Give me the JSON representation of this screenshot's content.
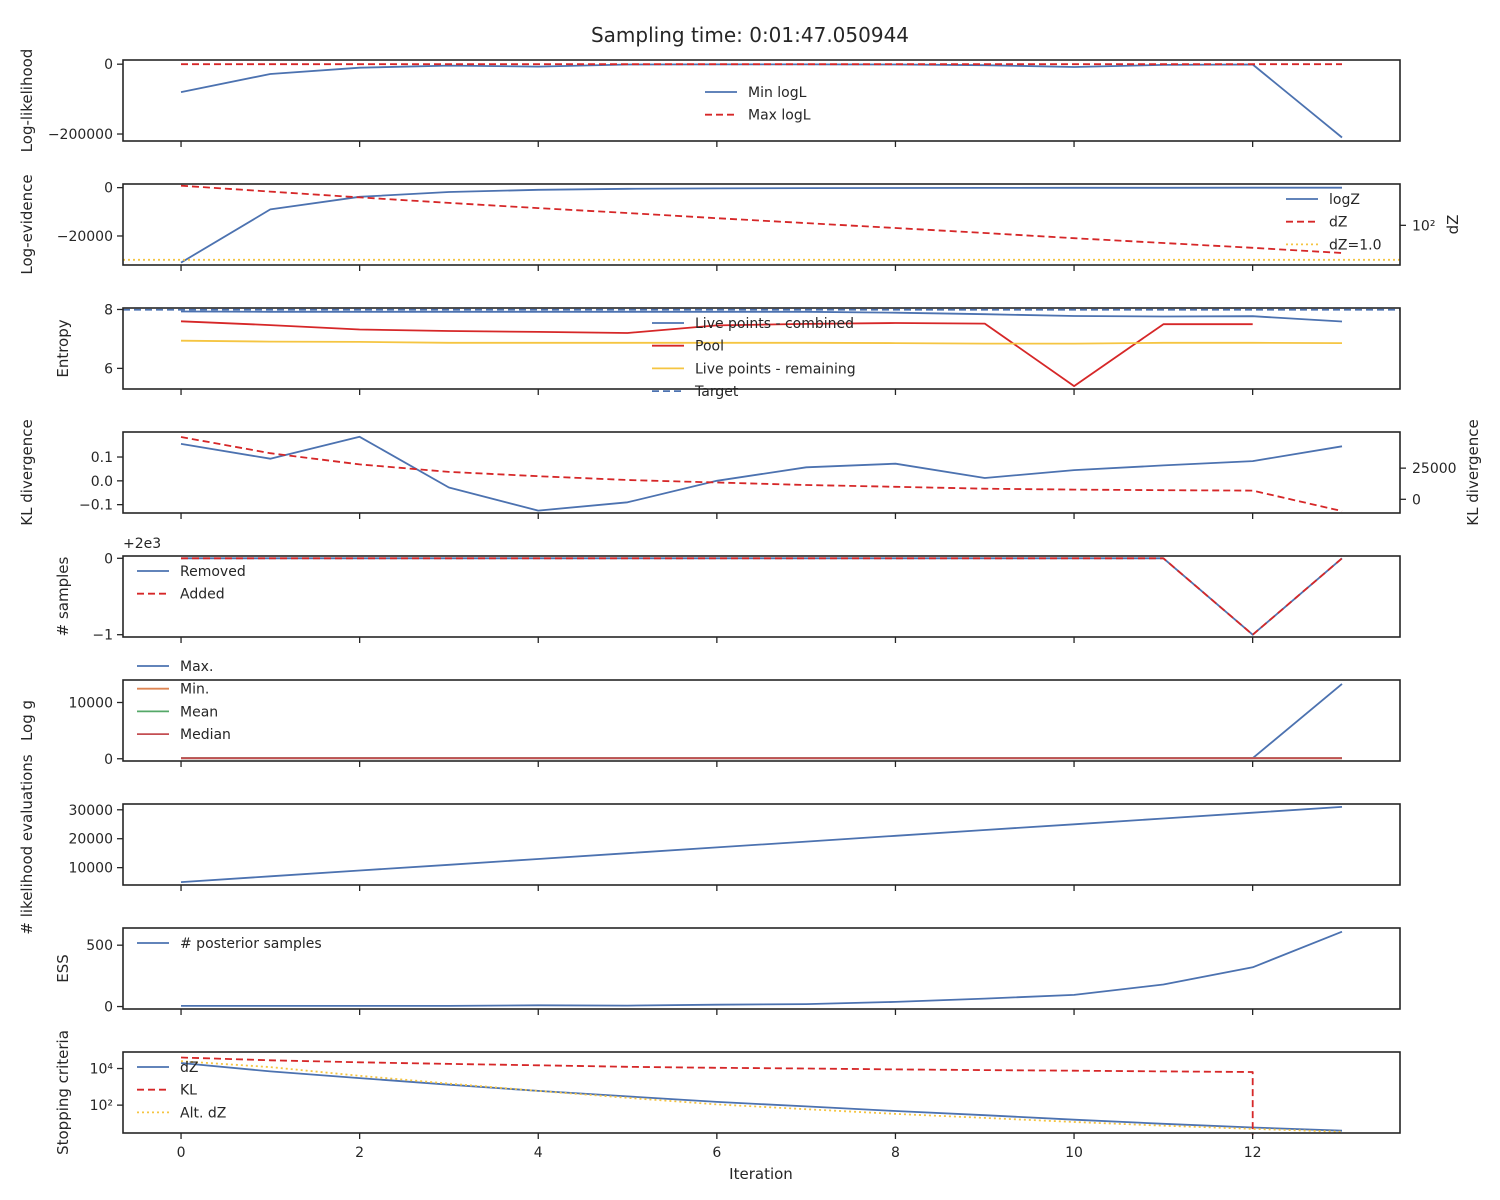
{
  "colors": {
    "blue": "#4c72b0",
    "red": "#d62728",
    "yellow": "#f5c542",
    "orange": "#dd8452",
    "green": "#55a868",
    "crimson": "#c44e52"
  },
  "chart_data": {
    "type": "line",
    "title": "Sampling time: 0:01:47.050944",
    "xlabel": "Iteration",
    "x": [
      0,
      1,
      2,
      3,
      4,
      5,
      6,
      7,
      8,
      9,
      10,
      11,
      12,
      13
    ],
    "xlim": [
      -0.65,
      13.65
    ],
    "xticks": [
      0,
      2,
      4,
      6,
      8,
      10,
      12
    ],
    "xticklabels": [
      "0",
      "2",
      "4",
      "6",
      "8",
      "10",
      "12"
    ],
    "panels": [
      {
        "ylabel": "Log-likelihood",
        "ylim": [
          -220000,
          12000
        ],
        "yticks": [
          0,
          -200000
        ],
        "yticklabels": [
          "0",
          "−200000"
        ],
        "legend_loc": "upper-center",
        "series": [
          {
            "name": "Min logL",
            "color": "#4c72b0",
            "dash": "solid",
            "values": [
              -80000,
              -28000,
              -10000,
              -4000,
              -7000,
              -1000,
              -500,
              -500,
              -800,
              -3000,
              -8000,
              -2000,
              -1000,
              -210000
            ]
          },
          {
            "name": "Max logL",
            "color": "#d62728",
            "dash": "dashed",
            "values": [
              0,
              0,
              0,
              0,
              0,
              0,
              0,
              0,
              0,
              0,
              0,
              0,
              0,
              0
            ]
          }
        ]
      },
      {
        "ylabel": "Log-evidence",
        "y2label": "dZ",
        "ylim": [
          -32000,
          1500
        ],
        "yticks": [
          0,
          -20000
        ],
        "yticklabels": [
          "0",
          "−20000"
        ],
        "y2scale": "log",
        "y2lim": [
          0.5,
          25000
        ],
        "y2ticks": [
          100
        ],
        "y2ticklabels": [
          "10²"
        ],
        "legend_loc": "right",
        "series": [
          {
            "name": "logZ",
            "color": "#4c72b0",
            "dash": "solid",
            "values": [
              -31000,
              -9000,
              -3800,
              -1800,
              -900,
              -500,
              -300,
              -200,
              -150,
              -100,
              -80,
              -60,
              -50,
              -45
            ]
          },
          {
            "name": "dZ",
            "color": "#d62728",
            "dash": "dashed",
            "axis": "y2",
            "values": [
              20000,
              9000,
              4200,
              2000,
              1000,
              520,
              260,
              135,
              70,
              36,
              18,
              9.5,
              5,
              2.5
            ]
          },
          {
            "name": "dZ=1.0",
            "color": "#f5c542",
            "dash": "dotted",
            "axis": "y2",
            "hline": 1.0
          }
        ]
      },
      {
        "ylabel": "Entropy",
        "ylim": [
          5.3,
          8.05
        ],
        "yticks": [
          8,
          6
        ],
        "yticklabels": [
          "8",
          "6"
        ],
        "legend_loc": "upper-center",
        "series": [
          {
            "name": "Live points - combined",
            "color": "#4c72b0",
            "dash": "solid",
            "values": [
              7.93,
              7.92,
              7.92,
              7.92,
              7.92,
              7.92,
              7.92,
              7.92,
              7.89,
              7.84,
              7.78,
              7.76,
              7.77,
              7.59
            ]
          },
          {
            "name": "Pool",
            "color": "#d62728",
            "dash": "solid",
            "values": [
              7.6,
              7.47,
              7.32,
              7.27,
              7.24,
              7.2,
              7.46,
              7.51,
              7.54,
              7.52,
              5.4,
              7.5,
              7.5,
              null
            ]
          },
          {
            "name": "Live points - remaining",
            "color": "#f5c542",
            "dash": "solid",
            "values": [
              6.94,
              6.91,
              6.9,
              6.87,
              6.87,
              6.87,
              6.87,
              6.87,
              6.86,
              6.84,
              6.84,
              6.87,
              6.87,
              6.86
            ]
          },
          {
            "name": "Target",
            "color": "#4c72b0",
            "dash": "dashed",
            "hline": 7.99
          }
        ]
      },
      {
        "ylabel": "KL divergence",
        "y2label": "KL divergence",
        "ylim": [
          -0.135,
          0.205
        ],
        "yticks": [
          0.1,
          0.0,
          -0.1
        ],
        "yticklabels": [
          "0.1",
          "0.0",
          "−0.1"
        ],
        "y2lim": [
          -11000,
          54000
        ],
        "y2ticks": [
          25000,
          0
        ],
        "y2ticklabels": [
          "25000",
          "0"
        ],
        "series": [
          {
            "name": "",
            "color": "#4c72b0",
            "dash": "solid",
            "values": [
              0.155,
              0.093,
              0.185,
              -0.028,
              -0.125,
              -0.09,
              0.0,
              0.057,
              0.072,
              0.012,
              0.045,
              0.065,
              0.083,
              0.145
            ]
          },
          {
            "name": "",
            "color": "#d62728",
            "dash": "dashed",
            "axis": "y2",
            "values": [
              50000,
              37000,
              28000,
              22000,
              18500,
              15500,
              13500,
              11500,
              10000,
              8500,
              7800,
              7300,
              7000,
              -9500
            ]
          }
        ]
      },
      {
        "ylabel": "# samples",
        "ylim": [
          -1.03,
          0.03
        ],
        "yticks": [
          0,
          -1
        ],
        "yticklabels": [
          "0",
          "−1"
        ],
        "offset_text": "+2e3",
        "legend_loc": "upper-left",
        "series": [
          {
            "name": "Removed",
            "color": "#4c72b0",
            "dash": "solid",
            "values": [
              0,
              0,
              0,
              0,
              0,
              0,
              0,
              0,
              0,
              0,
              0,
              0,
              -1,
              0
            ]
          },
          {
            "name": "Added",
            "color": "#d62728",
            "dash": "dashed",
            "values": [
              0,
              0,
              0,
              0,
              0,
              0,
              0,
              0,
              0,
              0,
              0,
              0,
              -1,
              0
            ]
          }
        ]
      },
      {
        "ylabel": "Log g",
        "ylim": [
          -400,
          14000
        ],
        "yticks": [
          10000,
          0
        ],
        "yticklabels": [
          "10000",
          "0"
        ],
        "legend_loc": "upper-left",
        "series": [
          {
            "name": "Max.",
            "color": "#4c72b0",
            "dash": "solid",
            "values": [
              100,
              100,
              100,
              100,
              100,
              100,
              100,
              100,
              100,
              100,
              100,
              100,
              100,
              13300
            ]
          },
          {
            "name": "Min.",
            "color": "#dd8452",
            "dash": "solid",
            "values": [
              100,
              100,
              100,
              100,
              100,
              100,
              100,
              100,
              100,
              100,
              100,
              100,
              100,
              100
            ]
          },
          {
            "name": "Mean",
            "color": "#55a868",
            "dash": "solid",
            "values": [
              100,
              100,
              100,
              100,
              100,
              100,
              100,
              100,
              100,
              100,
              100,
              100,
              100,
              100
            ]
          },
          {
            "name": "Median",
            "color": "#c44e52",
            "dash": "solid",
            "values": [
              100,
              100,
              100,
              100,
              100,
              100,
              100,
              100,
              100,
              100,
              100,
              100,
              100,
              100
            ]
          }
        ]
      },
      {
        "ylabel": "# likelihood evaluations",
        "ylim": [
          4000,
          32000
        ],
        "yticks": [
          30000,
          20000,
          10000
        ],
        "yticklabels": [
          "30000",
          "20000",
          "10000"
        ],
        "series": [
          {
            "name": "",
            "color": "#4c72b0",
            "dash": "solid",
            "values": [
              5000,
              7000,
              9000,
              11000,
              13000,
              15000,
              17000,
              19000,
              21000,
              23000,
              25000,
              27000,
              29000,
              31000
            ]
          }
        ]
      },
      {
        "ylabel": "ESS",
        "ylim": [
          -20,
          640
        ],
        "yticks": [
          500,
          0
        ],
        "yticklabels": [
          "500",
          "0"
        ],
        "legend_loc": "upper-left",
        "series": [
          {
            "name": "# posterior samples",
            "color": "#4c72b0",
            "dash": "solid",
            "values": [
              5,
              5,
              5,
              5,
              10,
              8,
              15,
              20,
              38,
              65,
              95,
              180,
              320,
              610
            ]
          }
        ]
      },
      {
        "ylabel": "Stopping criteria",
        "yscale": "log",
        "ylim": [
          3,
          80000
        ],
        "yticks": [
          10000,
          100
        ],
        "yticklabels": [
          "10⁴",
          "10²"
        ],
        "legend_loc": "upper-left",
        "series": [
          {
            "name": "dZ",
            "color": "#4c72b0",
            "dash": "solid",
            "values": [
              20000,
              7000,
              3000,
              1300,
              600,
              300,
              150,
              85,
              48,
              28,
              16,
              9.5,
              6,
              4
            ]
          },
          {
            "name": "KL",
            "color": "#d62728",
            "dash": "dashed",
            "values": [
              40000,
              28000,
              22000,
              18000,
              15000,
              12500,
              11000,
              10000,
              9000,
              8200,
              7600,
              7000,
              6500,
              null
            ],
            "drop_at": 12
          },
          {
            "name": "Alt. dZ",
            "color": "#f5c542",
            "dash": "dotted",
            "values": [
              25000,
              12000,
              4000,
              1500,
              600,
              250,
              110,
              60,
              33,
              20,
              12,
              7.5,
              5,
              3.5
            ]
          }
        ]
      }
    ]
  }
}
